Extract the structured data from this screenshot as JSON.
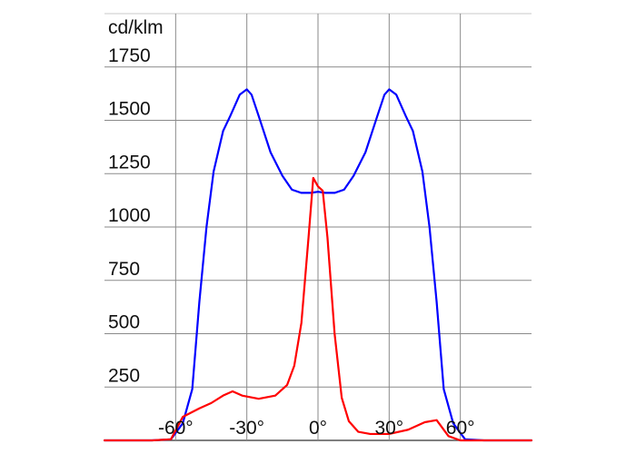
{
  "chart_data": {
    "type": "line",
    "ylabel": "cd/klm",
    "xlabel": "",
    "x_ticks": [
      {
        "value": -60,
        "label": "-60°"
      },
      {
        "value": -30,
        "label": "-30°"
      },
      {
        "value": 0,
        "label": "0°"
      },
      {
        "value": 30,
        "label": "30°"
      },
      {
        "value": 60,
        "label": "60°"
      }
    ],
    "y_ticks": [
      {
        "value": 250,
        "label": "250"
      },
      {
        "value": 500,
        "label": "500"
      },
      {
        "value": 750,
        "label": "750"
      },
      {
        "value": 1000,
        "label": "1000"
      },
      {
        "value": 1250,
        "label": "1250"
      },
      {
        "value": 1500,
        "label": "1500"
      },
      {
        "value": 1750,
        "label": "1750"
      }
    ],
    "xlim": [
      -90,
      90
    ],
    "ylim": [
      0,
      2000
    ],
    "grid": true,
    "series": [
      {
        "color": "#0000ff",
        "points": [
          [
            -90,
            0
          ],
          [
            -70,
            0
          ],
          [
            -62,
            5
          ],
          [
            -57,
            80
          ],
          [
            -53,
            240
          ],
          [
            -50,
            650
          ],
          [
            -47,
            1000
          ],
          [
            -44,
            1260
          ],
          [
            -40,
            1450
          ],
          [
            -37,
            1520
          ],
          [
            -33,
            1620
          ],
          [
            -30,
            1645
          ],
          [
            -28,
            1620
          ],
          [
            -25,
            1520
          ],
          [
            -20,
            1350
          ],
          [
            -15,
            1240
          ],
          [
            -11,
            1175
          ],
          [
            -7,
            1160
          ],
          [
            -3,
            1160
          ],
          [
            0,
            1165
          ],
          [
            3,
            1160
          ],
          [
            7,
            1160
          ],
          [
            11,
            1175
          ],
          [
            15,
            1240
          ],
          [
            20,
            1350
          ],
          [
            25,
            1520
          ],
          [
            28,
            1620
          ],
          [
            30,
            1645
          ],
          [
            33,
            1620
          ],
          [
            37,
            1520
          ],
          [
            40,
            1450
          ],
          [
            44,
            1260
          ],
          [
            47,
            1000
          ],
          [
            50,
            650
          ],
          [
            53,
            240
          ],
          [
            57,
            80
          ],
          [
            62,
            5
          ],
          [
            70,
            0
          ],
          [
            90,
            0
          ]
        ]
      },
      {
        "color": "#ff0000",
        "points": [
          [
            -90,
            0
          ],
          [
            -70,
            0
          ],
          [
            -62,
            5
          ],
          [
            -57,
            110
          ],
          [
            -50,
            150
          ],
          [
            -45,
            175
          ],
          [
            -40,
            210
          ],
          [
            -36,
            230
          ],
          [
            -32,
            210
          ],
          [
            -25,
            195
          ],
          [
            -18,
            210
          ],
          [
            -13,
            260
          ],
          [
            -10,
            350
          ],
          [
            -7,
            550
          ],
          [
            -4,
            950
          ],
          [
            -2,
            1230
          ],
          [
            0,
            1190
          ],
          [
            2,
            1170
          ],
          [
            4,
            950
          ],
          [
            7,
            500
          ],
          [
            10,
            200
          ],
          [
            13,
            90
          ],
          [
            17,
            40
          ],
          [
            22,
            30
          ],
          [
            30,
            30
          ],
          [
            38,
            50
          ],
          [
            45,
            85
          ],
          [
            50,
            95
          ],
          [
            55,
            20
          ],
          [
            60,
            0
          ],
          [
            90,
            0
          ]
        ]
      }
    ]
  }
}
